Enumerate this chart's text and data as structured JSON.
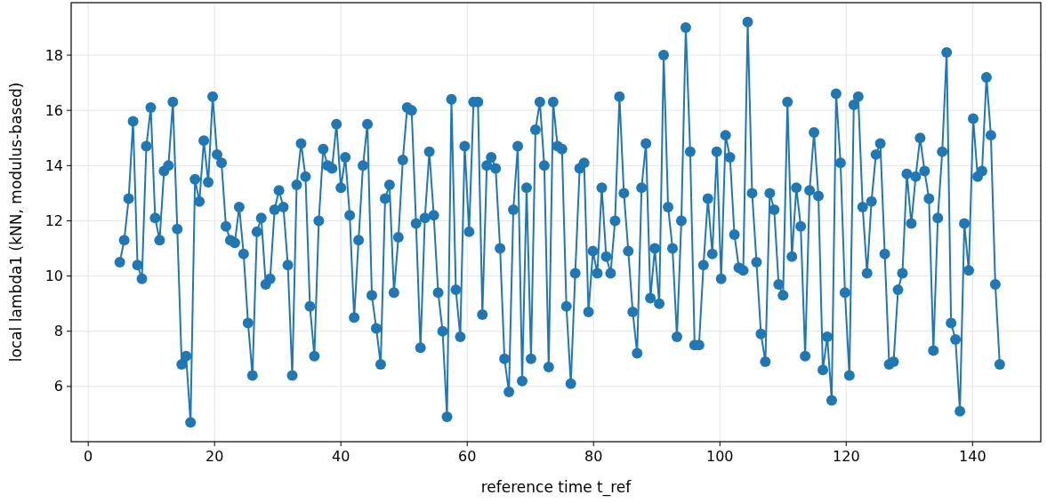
{
  "chart_data": {
    "type": "line",
    "xlabel": "reference time t_ref",
    "ylabel": "local lambda1 (kNN, modulus-based)",
    "xlim": [
      -2.7,
      150.8
    ],
    "ylim": [
      4.0,
      19.9
    ],
    "xticks": [
      0,
      20,
      40,
      60,
      80,
      100,
      120,
      140
    ],
    "yticks": [
      6,
      8,
      10,
      12,
      14,
      16,
      18
    ],
    "grid": true,
    "marker": "circle",
    "line_style": "solid",
    "series": [
      {
        "color": "#1f77b4",
        "x": [
          5,
          5.7,
          6.4,
          7.1,
          7.8,
          8.5,
          9.2,
          9.9,
          10.6,
          11.3,
          12,
          12.7,
          13.4,
          14.1,
          14.8,
          15.5,
          16.2,
          16.9,
          17.6,
          18.3,
          19,
          19.7,
          20.4,
          21.1,
          21.8,
          22.5,
          23.2,
          23.9,
          24.6,
          25.3,
          26,
          26.7,
          27.4,
          28.1,
          28.8,
          29.5,
          30.2,
          30.9,
          31.6,
          32.3,
          33,
          33.7,
          34.4,
          35.1,
          35.8,
          36.5,
          37.2,
          37.9,
          38.6,
          39.3,
          40,
          40.7,
          41.4,
          42.1,
          42.8,
          43.5,
          44.2,
          44.9,
          45.6,
          46.3,
          47,
          47.7,
          48.4,
          49.1,
          49.8,
          50.5,
          51.2,
          51.9,
          52.6,
          53.3,
          54,
          54.7,
          55.4,
          56.1,
          56.8,
          57.5,
          58.2,
          58.9,
          59.6,
          60.3,
          61,
          61.7,
          62.4,
          63.1,
          63.8,
          64.5,
          65.2,
          65.9,
          66.6,
          67.3,
          68,
          68.7,
          69.4,
          70.1,
          70.8,
          71.5,
          72.2,
          72.9,
          73.6,
          74.3,
          75,
          75.7,
          76.4,
          77.1,
          77.8,
          78.5,
          79.2,
          79.9,
          80.6,
          81.3,
          82,
          82.7,
          83.4,
          84.1,
          84.8,
          85.5,
          86.2,
          86.9,
          87.6,
          88.3,
          89,
          89.7,
          90.4,
          91.1,
          91.8,
          92.5,
          93.2,
          93.9,
          94.6,
          95.3,
          96,
          96.7,
          97.4,
          98.1,
          98.8,
          99.5,
          100.2,
          100.9,
          101.6,
          102.3,
          103,
          103.7,
          104.4,
          105.1,
          105.8,
          106.5,
          107.2,
          107.9,
          108.6,
          109.3,
          110,
          110.7,
          111.4,
          112.1,
          112.8,
          113.5,
          114.2,
          114.9,
          115.6,
          116.3,
          117,
          117.7,
          118.4,
          119.1,
          119.8,
          120.5,
          121.2,
          121.9,
          122.6,
          123.3,
          124,
          124.7,
          125.4,
          126.1,
          126.8,
          127.5,
          128.2,
          128.9,
          129.6,
          130.3,
          131,
          131.7,
          132.4,
          133.1,
          133.8,
          134.5,
          135.2,
          135.9,
          136.6,
          137.3,
          138,
          138.7,
          139.4,
          140.1,
          140.8,
          141.5,
          142.2,
          142.9,
          143.6,
          144.3
        ],
        "values": [
          10.5,
          11.3,
          12.8,
          15.6,
          10.4,
          9.9,
          14.7,
          16.1,
          12.1,
          11.3,
          13.8,
          14,
          16.3,
          11.7,
          6.8,
          7.1,
          4.7,
          13.5,
          12.7,
          14.9,
          13.4,
          16.5,
          14.4,
          14.1,
          11.8,
          11.3,
          11.2,
          12.5,
          10.8,
          8.3,
          6.4,
          11.6,
          12.1,
          9.7,
          9.9,
          12.4,
          13.1,
          12.5,
          10.4,
          6.4,
          13.3,
          14.8,
          13.6,
          8.9,
          7.1,
          12,
          14.6,
          14,
          13.9,
          15.5,
          13.2,
          14.3,
          12.2,
          8.5,
          11.3,
          14,
          15.5,
          9.3,
          8.1,
          6.8,
          12.8,
          13.3,
          9.4,
          11.4,
          14.2,
          16.1,
          16,
          11.9,
          7.4,
          12.1,
          14.5,
          12.2,
          9.4,
          8,
          4.9,
          16.4,
          9.5,
          7.8,
          14.7,
          11.6,
          16.3,
          16.3,
          8.6,
          14,
          14.3,
          13.9,
          11,
          7,
          5.8,
          12.4,
          14.7,
          6.2,
          13.2,
          7,
          15.3,
          16.3,
          14,
          6.7,
          16.3,
          14.7,
          14.6,
          8.9,
          6.1,
          10.1,
          13.9,
          14.1,
          8.7,
          10.9,
          10.1,
          13.2,
          10.7,
          10.1,
          12,
          16.5,
          13,
          10.9,
          8.7,
          7.2,
          13.2,
          14.8,
          9.2,
          11,
          9,
          18,
          12.5,
          11,
          7.8,
          12,
          19,
          14.5,
          7.5,
          7.5,
          10.4,
          12.8,
          10.8,
          14.5,
          9.9,
          15.1,
          14.3,
          11.5,
          10.3,
          10.2,
          19.2,
          13,
          10.5,
          7.9,
          6.9,
          13,
          12.4,
          9.7,
          9.3,
          16.3,
          10.7,
          13.2,
          11.8,
          7.1,
          13.1,
          15.2,
          12.9,
          6.6,
          7.8,
          5.5,
          16.6,
          14.1,
          9.4,
          6.4,
          16.2,
          16.5,
          12.5,
          10.1,
          12.7,
          14.4,
          14.8,
          10.8,
          6.8,
          6.9,
          9.5,
          10.1,
          13.7,
          11.9,
          13.6,
          15,
          13.8,
          12.8,
          7.3,
          12.1,
          14.5,
          18.1,
          8.3,
          7.7,
          5.1,
          11.9,
          10.2,
          15.7,
          13.6,
          13.8,
          17.2,
          15.1,
          9.7,
          6.8
        ]
      }
    ]
  }
}
